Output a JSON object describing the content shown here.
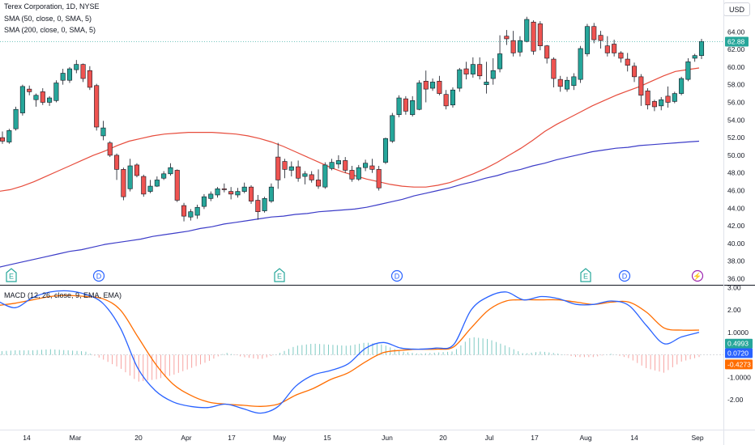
{
  "header": {
    "title": "Terex Corporation, 1D, NYSE",
    "sma50_label": "SMA (50, close, 0, SMA, 5)",
    "sma200_label": "SMA (200, close, 0, SMA, 5)",
    "currency": "USD"
  },
  "colors": {
    "up": "#26a69a",
    "down": "#ef5350",
    "sma50": "#e74c3c",
    "sma200": "#3c3cc8",
    "macd": "#2962ff",
    "signal": "#ff6d00",
    "event_e": "#26a69a",
    "event_d": "#2962ff",
    "event_split": "#9c27b0"
  },
  "chart_data": [
    {
      "type": "candlestick",
      "title": "Terex Corporation, 1D, NYSE",
      "xlabel": "",
      "ylabel": "USD",
      "ylim": [
        35.5,
        66.5
      ],
      "y_ticks": [
        "36.00",
        "38.00",
        "40.00",
        "42.00",
        "44.00",
        "46.00",
        "48.00",
        "50.00",
        "52.00",
        "54.00",
        "56.00",
        "58.00",
        "60.00",
        "62.00",
        "64.00"
      ],
      "x_ticks": [
        "14",
        "Mar",
        "20",
        "Apr",
        "17",
        "May",
        "15",
        "Jun",
        "20",
        "Jul",
        "17",
        "Aug",
        "14",
        "Sep"
      ],
      "last_price_label": "62.88",
      "series": [
        {
          "name": "SMA (50, close, 0, SMA, 5)",
          "values": [
            45.9,
            46.1,
            46.5,
            47.0,
            47.6,
            48.2,
            48.8,
            49.4,
            50.0,
            50.5,
            51.1,
            51.6,
            51.9,
            52.2,
            52.4,
            52.5,
            52.6,
            52.6,
            52.6,
            52.5,
            52.4,
            52.2,
            51.9,
            51.5,
            51.0,
            50.4,
            49.8,
            49.2,
            48.6,
            48.1,
            47.7,
            47.3,
            47.0,
            46.7,
            46.5,
            46.4,
            46.4,
            46.6,
            46.9,
            47.4,
            47.9,
            48.5,
            49.2,
            50.0,
            50.8,
            51.7,
            52.7,
            53.5,
            54.2,
            54.9,
            55.6,
            56.2,
            56.8,
            57.3,
            57.8,
            58.4,
            59.0,
            59.5,
            59.7,
            59.9
          ]
        },
        {
          "name": "SMA (200, close, 0, SMA, 5)",
          "values": [
            37.3,
            37.6,
            37.9,
            38.2,
            38.5,
            38.8,
            39.1,
            39.3,
            39.6,
            39.9,
            40.1,
            40.3,
            40.5,
            40.8,
            41.0,
            41.2,
            41.4,
            41.7,
            41.9,
            42.2,
            42.4,
            42.6,
            42.8,
            43.0,
            43.1,
            43.3,
            43.4,
            43.6,
            43.7,
            43.8,
            43.9,
            44.1,
            44.4,
            44.7,
            45.0,
            45.4,
            45.7,
            46.0,
            46.3,
            46.7,
            47.0,
            47.4,
            47.7,
            48.1,
            48.4,
            48.8,
            49.1,
            49.5,
            49.8,
            50.1,
            50.4,
            50.6,
            50.8,
            50.9,
            51.1,
            51.2,
            51.3,
            51.4,
            51.5,
            51.6
          ]
        }
      ],
      "candles": [
        {
          "o": 52.0,
          "h": 52.7,
          "l": 51.3,
          "c": 51.6
        },
        {
          "o": 51.5,
          "h": 53.0,
          "l": 51.3,
          "c": 52.8
        },
        {
          "o": 53.0,
          "h": 55.5,
          "l": 52.8,
          "c": 55.2
        },
        {
          "o": 54.8,
          "h": 58.0,
          "l": 54.5,
          "c": 57.8
        },
        {
          "o": 57.5,
          "h": 57.9,
          "l": 56.8,
          "c": 57.2
        },
        {
          "o": 56.3,
          "h": 57.0,
          "l": 55.5,
          "c": 56.8
        },
        {
          "o": 57.2,
          "h": 57.6,
          "l": 55.7,
          "c": 56.0
        },
        {
          "o": 56.0,
          "h": 56.7,
          "l": 55.6,
          "c": 56.5
        },
        {
          "o": 56.2,
          "h": 58.5,
          "l": 56.0,
          "c": 58.2
        },
        {
          "o": 58.5,
          "h": 59.8,
          "l": 58.0,
          "c": 59.3
        },
        {
          "o": 58.5,
          "h": 60.0,
          "l": 58.2,
          "c": 59.8
        },
        {
          "o": 59.7,
          "h": 60.8,
          "l": 59.3,
          "c": 60.3
        },
        {
          "o": 60.3,
          "h": 60.4,
          "l": 58.3,
          "c": 58.7
        },
        {
          "o": 59.6,
          "h": 60.1,
          "l": 57.4,
          "c": 57.7
        },
        {
          "o": 57.9,
          "h": 58.1,
          "l": 52.8,
          "c": 53.2
        },
        {
          "o": 52.2,
          "h": 53.9,
          "l": 51.7,
          "c": 53.1
        },
        {
          "o": 51.4,
          "h": 51.6,
          "l": 49.8,
          "c": 50.0
        },
        {
          "o": 50.0,
          "h": 50.2,
          "l": 47.2,
          "c": 48.4
        },
        {
          "o": 48.4,
          "h": 48.6,
          "l": 44.9,
          "c": 45.3
        },
        {
          "o": 46.2,
          "h": 49.6,
          "l": 45.9,
          "c": 48.8
        },
        {
          "o": 48.9,
          "h": 49.1,
          "l": 47.5,
          "c": 47.7
        },
        {
          "o": 47.6,
          "h": 47.8,
          "l": 45.3,
          "c": 45.6
        },
        {
          "o": 45.9,
          "h": 47.2,
          "l": 45.7,
          "c": 46.5
        },
        {
          "o": 46.5,
          "h": 47.6,
          "l": 46.4,
          "c": 47.2
        },
        {
          "o": 47.4,
          "h": 48.2,
          "l": 47.2,
          "c": 47.9
        },
        {
          "o": 47.9,
          "h": 49.1,
          "l": 47.7,
          "c": 48.6
        },
        {
          "o": 48.3,
          "h": 48.4,
          "l": 44.7,
          "c": 44.9
        },
        {
          "o": 44.3,
          "h": 44.6,
          "l": 42.5,
          "c": 43.1
        },
        {
          "o": 43.0,
          "h": 43.9,
          "l": 42.6,
          "c": 43.6
        },
        {
          "o": 43.2,
          "h": 44.4,
          "l": 42.8,
          "c": 44.1
        },
        {
          "o": 44.2,
          "h": 45.6,
          "l": 43.9,
          "c": 45.3
        },
        {
          "o": 45.1,
          "h": 45.9,
          "l": 44.8,
          "c": 45.6
        },
        {
          "o": 45.5,
          "h": 46.4,
          "l": 45.2,
          "c": 46.2
        },
        {
          "o": 46.2,
          "h": 46.8,
          "l": 45.8,
          "c": 46.1
        },
        {
          "o": 45.9,
          "h": 46.4,
          "l": 45.0,
          "c": 45.6
        },
        {
          "o": 45.5,
          "h": 46.3,
          "l": 45.2,
          "c": 45.9
        },
        {
          "o": 45.9,
          "h": 46.9,
          "l": 45.7,
          "c": 46.4
        },
        {
          "o": 46.4,
          "h": 46.6,
          "l": 44.5,
          "c": 44.8
        },
        {
          "o": 44.9,
          "h": 45.5,
          "l": 42.7,
          "c": 43.6
        },
        {
          "o": 43.7,
          "h": 45.3,
          "l": 43.5,
          "c": 45.1
        },
        {
          "o": 44.8,
          "h": 46.8,
          "l": 44.6,
          "c": 46.4
        },
        {
          "o": 49.8,
          "h": 51.4,
          "l": 46.2,
          "c": 47.2
        },
        {
          "o": 49.3,
          "h": 49.6,
          "l": 47.4,
          "c": 48.4
        },
        {
          "o": 48.3,
          "h": 49.3,
          "l": 47.6,
          "c": 48.7
        },
        {
          "o": 48.7,
          "h": 49.4,
          "l": 47.0,
          "c": 47.4
        },
        {
          "o": 47.6,
          "h": 48.2,
          "l": 46.7,
          "c": 47.9
        },
        {
          "o": 47.8,
          "h": 48.2,
          "l": 46.9,
          "c": 47.2
        },
        {
          "o": 47.2,
          "h": 48.4,
          "l": 46.2,
          "c": 46.5
        },
        {
          "o": 46.4,
          "h": 49.2,
          "l": 46.2,
          "c": 48.9
        },
        {
          "o": 48.5,
          "h": 49.6,
          "l": 48.3,
          "c": 49.2
        },
        {
          "o": 49.0,
          "h": 50.0,
          "l": 48.5,
          "c": 49.4
        },
        {
          "o": 49.4,
          "h": 49.8,
          "l": 48.0,
          "c": 48.3
        },
        {
          "o": 48.3,
          "h": 48.8,
          "l": 47.0,
          "c": 47.3
        },
        {
          "o": 47.3,
          "h": 48.9,
          "l": 47.1,
          "c": 48.6
        },
        {
          "o": 48.6,
          "h": 49.5,
          "l": 48.2,
          "c": 49.1
        },
        {
          "o": 48.8,
          "h": 49.6,
          "l": 48.0,
          "c": 48.4
        },
        {
          "o": 48.4,
          "h": 48.8,
          "l": 46.0,
          "c": 46.3
        },
        {
          "o": 49.2,
          "h": 52.0,
          "l": 49.0,
          "c": 51.9
        },
        {
          "o": 51.6,
          "h": 54.8,
          "l": 51.4,
          "c": 54.5
        },
        {
          "o": 54.6,
          "h": 56.8,
          "l": 54.3,
          "c": 56.5
        },
        {
          "o": 56.4,
          "h": 56.7,
          "l": 54.6,
          "c": 55.0
        },
        {
          "o": 54.6,
          "h": 56.7,
          "l": 54.4,
          "c": 56.2
        },
        {
          "o": 55.2,
          "h": 58.5,
          "l": 55.1,
          "c": 58.2
        },
        {
          "o": 58.4,
          "h": 59.6,
          "l": 56.0,
          "c": 57.5
        },
        {
          "o": 57.6,
          "h": 58.7,
          "l": 57.3,
          "c": 58.3
        },
        {
          "o": 58.4,
          "h": 59.0,
          "l": 56.8,
          "c": 57.0
        },
        {
          "o": 56.9,
          "h": 57.4,
          "l": 55.2,
          "c": 55.6
        },
        {
          "o": 55.7,
          "h": 57.7,
          "l": 55.4,
          "c": 57.4
        },
        {
          "o": 57.6,
          "h": 59.9,
          "l": 57.2,
          "c": 59.7
        },
        {
          "o": 59.8,
          "h": 60.6,
          "l": 58.6,
          "c": 59.2
        },
        {
          "o": 59.2,
          "h": 61.1,
          "l": 58.8,
          "c": 60.3
        },
        {
          "o": 60.3,
          "h": 61.1,
          "l": 58.6,
          "c": 59.0
        },
        {
          "o": 58.0,
          "h": 60.6,
          "l": 57.0,
          "c": 58.3
        },
        {
          "o": 58.7,
          "h": 61.0,
          "l": 58.0,
          "c": 59.6
        },
        {
          "o": 59.8,
          "h": 63.6,
          "l": 59.4,
          "c": 61.5
        },
        {
          "o": 63.5,
          "h": 64.2,
          "l": 62.5,
          "c": 63.2
        },
        {
          "o": 63.0,
          "h": 64.1,
          "l": 61.2,
          "c": 61.6
        },
        {
          "o": 61.7,
          "h": 63.5,
          "l": 61.2,
          "c": 63.0
        },
        {
          "o": 62.9,
          "h": 65.7,
          "l": 62.8,
          "c": 65.4
        },
        {
          "o": 65.1,
          "h": 65.3,
          "l": 61.4,
          "c": 61.8
        },
        {
          "o": 64.9,
          "h": 65.2,
          "l": 61.9,
          "c": 62.4
        },
        {
          "o": 62.4,
          "h": 62.5,
          "l": 60.4,
          "c": 61.0
        },
        {
          "o": 60.9,
          "h": 61.1,
          "l": 57.7,
          "c": 58.7
        },
        {
          "o": 58.6,
          "h": 59.0,
          "l": 57.2,
          "c": 57.8
        },
        {
          "o": 57.5,
          "h": 58.9,
          "l": 57.2,
          "c": 58.5
        },
        {
          "o": 57.9,
          "h": 59.3,
          "l": 57.4,
          "c": 58.9
        },
        {
          "o": 58.6,
          "h": 62.4,
          "l": 58.2,
          "c": 62.1
        },
        {
          "o": 61.5,
          "h": 64.9,
          "l": 61.2,
          "c": 64.6
        },
        {
          "o": 64.6,
          "h": 65.0,
          "l": 62.7,
          "c": 63.1
        },
        {
          "o": 63.6,
          "h": 64.1,
          "l": 62.1,
          "c": 63.0
        },
        {
          "o": 62.4,
          "h": 63.5,
          "l": 61.2,
          "c": 61.6
        },
        {
          "o": 62.6,
          "h": 63.1,
          "l": 61.2,
          "c": 61.6
        },
        {
          "o": 61.6,
          "h": 61.8,
          "l": 60.5,
          "c": 61.0
        },
        {
          "o": 60.9,
          "h": 61.6,
          "l": 59.5,
          "c": 60.2
        },
        {
          "o": 60.1,
          "h": 60.5,
          "l": 58.3,
          "c": 58.9
        },
        {
          "o": 58.9,
          "h": 59.2,
          "l": 55.6,
          "c": 56.8
        },
        {
          "o": 57.3,
          "h": 57.6,
          "l": 55.2,
          "c": 55.7
        },
        {
          "o": 56.1,
          "h": 56.3,
          "l": 55.0,
          "c": 55.5
        },
        {
          "o": 55.6,
          "h": 56.6,
          "l": 55.1,
          "c": 56.3
        },
        {
          "o": 56.7,
          "h": 57.8,
          "l": 55.4,
          "c": 56.0
        },
        {
          "o": 56.1,
          "h": 57.2,
          "l": 55.9,
          "c": 57.0
        },
        {
          "o": 57.0,
          "h": 58.9,
          "l": 56.8,
          "c": 58.7
        },
        {
          "o": 58.6,
          "h": 61.0,
          "l": 58.4,
          "c": 60.6
        },
        {
          "o": 61.0,
          "h": 61.5,
          "l": 60.6,
          "c": 61.3
        },
        {
          "o": 61.3,
          "h": 63.2,
          "l": 60.9,
          "c": 62.9
        }
      ],
      "annotations": [
        "E",
        "D",
        "E",
        "D",
        "E",
        "D",
        "⚡"
      ]
    },
    {
      "type": "line",
      "title": "MACD (12, 26, close, 9, EMA, EMA)",
      "xlabel": "",
      "ylabel": "",
      "ylim": [
        -3.3,
        3.05
      ],
      "y_ticks": [
        "3.00",
        "2.00",
        "1.0000",
        "-1.0000",
        "-2.00"
      ],
      "value_labels": [
        "0.4993",
        "0.0720",
        "-0.4273"
      ],
      "x": [
        0,
        5,
        10,
        15,
        20,
        25,
        30,
        35,
        40,
        45,
        50,
        55,
        60,
        65,
        70,
        75,
        80,
        85,
        90,
        95,
        100,
        105,
        110,
        115,
        120,
        125,
        130,
        135,
        140,
        145,
        150,
        155,
        160,
        165,
        170,
        175,
        180,
        185,
        190,
        195,
        200
      ],
      "series": [
        {
          "name": "MACD",
          "values": [
            2.4,
            2.1,
            2.55,
            2.8,
            2.85,
            2.7,
            2.3,
            1.2,
            -0.6,
            -1.6,
            -2.1,
            -2.3,
            -2.35,
            -2.2,
            -2.4,
            -2.6,
            -2.3,
            -1.4,
            -0.9,
            -0.7,
            -0.4,
            0.3,
            0.55,
            0.3,
            0.25,
            0.3,
            0.45,
            2.0,
            2.6,
            2.8,
            2.45,
            2.6,
            2.5,
            2.25,
            2.25,
            2.4,
            2.2,
            1.3,
            0.5,
            0.8,
            1.0
          ]
        },
        {
          "name": "Signal",
          "values": [
            2.2,
            2.3,
            2.45,
            2.6,
            2.65,
            2.6,
            2.5,
            2.0,
            0.8,
            -0.4,
            -1.3,
            -1.8,
            -2.1,
            -2.2,
            -2.25,
            -2.3,
            -2.2,
            -1.8,
            -1.5,
            -1.1,
            -0.8,
            -0.3,
            0.1,
            0.2,
            0.25,
            0.25,
            0.35,
            1.2,
            2.0,
            2.4,
            2.45,
            2.45,
            2.45,
            2.35,
            2.25,
            2.35,
            2.35,
            1.9,
            1.2,
            1.1,
            1.1
          ]
        },
        {
          "name": "Histogram",
          "values": [
            0.15,
            0.2,
            0.2,
            0.25,
            0.2,
            0.15,
            -0.2,
            -0.6,
            -1.2,
            -1.1,
            -0.9,
            -0.6,
            -0.3,
            0.1,
            -0.1,
            -0.2,
            0.05,
            0.4,
            0.5,
            0.45,
            0.4,
            0.55,
            0.45,
            0.15,
            0.05,
            0.1,
            0.15,
            0.8,
            0.7,
            0.4,
            0.05,
            0.15,
            0.05,
            -0.1,
            -0.1,
            0.05,
            -0.15,
            -0.6,
            -0.8,
            -0.3,
            -0.1
          ]
        }
      ]
    }
  ]
}
